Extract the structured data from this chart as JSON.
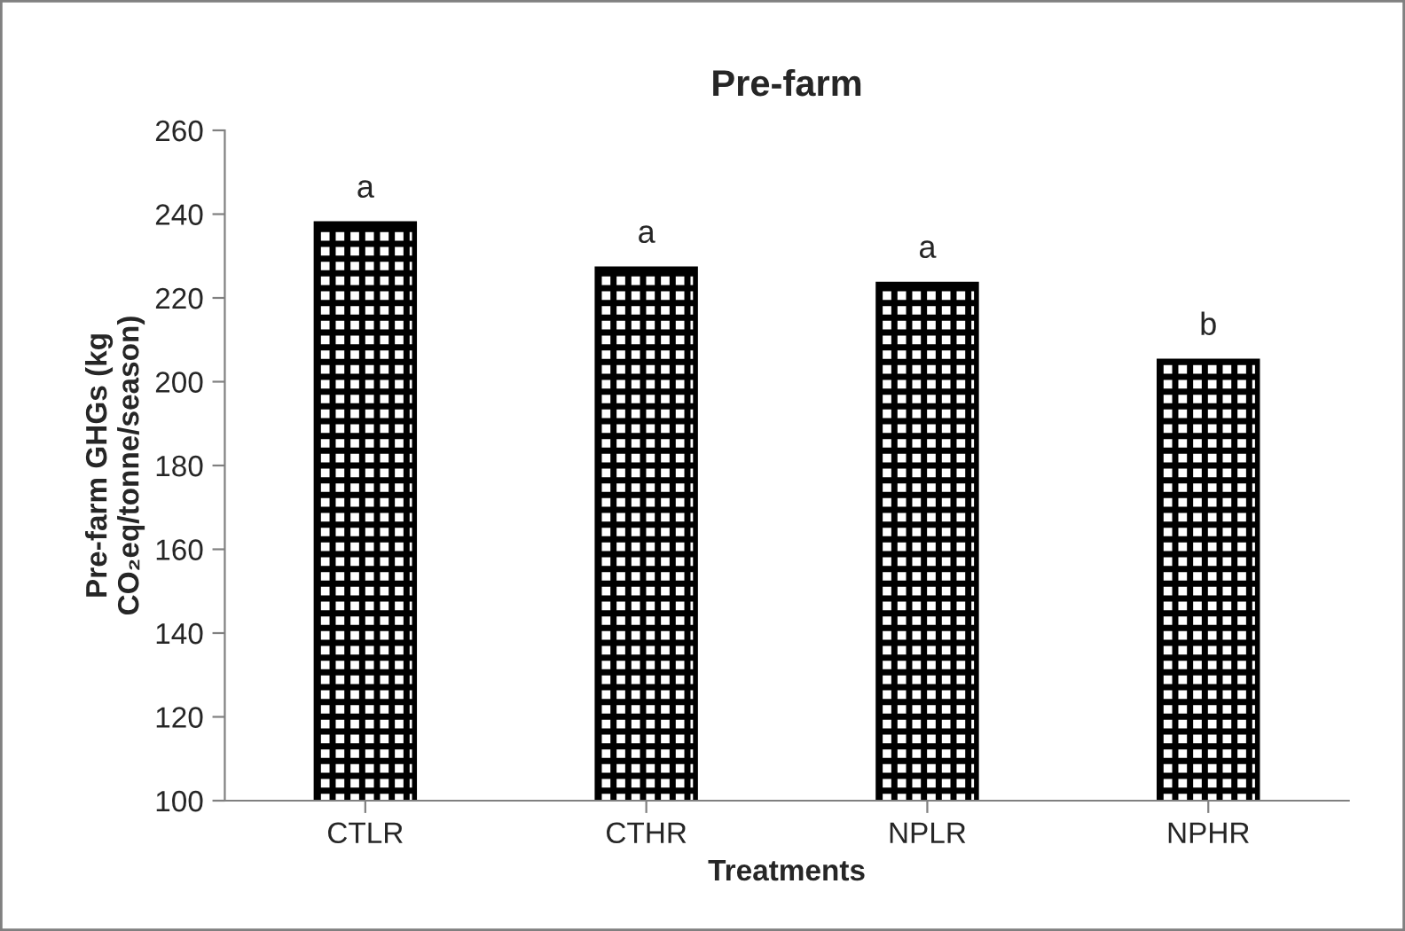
{
  "chart_data": {
    "type": "bar",
    "title": "Pre-farm",
    "xlabel": "Treatments",
    "ylabel": "Pre-farm GHGs (kg\nCO₂eq/tonne/season)",
    "categories": [
      "CTLR",
      "CTHR",
      "NPLR",
      "NPHR"
    ],
    "values": [
      237.7,
      226.9,
      223.3,
      204.9
    ],
    "color": "#000000",
    "ylim": [
      100,
      260
    ],
    "yticks": [
      100,
      120,
      140,
      160,
      180,
      200,
      220,
      240,
      260
    ],
    "grid": false,
    "legend": false,
    "annotations": [
      {
        "text": "a",
        "x": "CTLR",
        "y": 237.7
      },
      {
        "text": "a",
        "x": "CTHR",
        "y": 226.9
      },
      {
        "text": "a",
        "x": "NPLR",
        "y": 223.3
      },
      {
        "text": "b",
        "x": "NPHR",
        "y": 204.9
      }
    ]
  }
}
